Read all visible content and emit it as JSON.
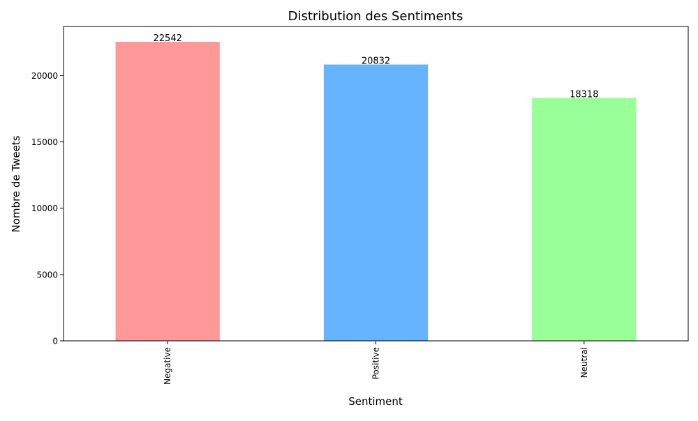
{
  "chart_data": {
    "type": "bar",
    "title": "Distribution des Sentiments",
    "xlabel": "Sentiment",
    "ylabel": "Nombre de Tweets",
    "categories": [
      "Negative",
      "Positive",
      "Neutral"
    ],
    "values": [
      22542,
      20832,
      18318
    ],
    "value_labels": [
      "22542",
      "20832",
      "18318"
    ],
    "colors": [
      "#ff9999",
      "#66b3ff",
      "#99ff99"
    ],
    "ylim": [
      0,
      23700
    ],
    "yticks": [
      0,
      5000,
      10000,
      15000,
      20000
    ],
    "ytick_labels": [
      "0",
      "5000",
      "10000",
      "15000",
      "20000"
    ],
    "grid": false,
    "legend": "none"
  }
}
